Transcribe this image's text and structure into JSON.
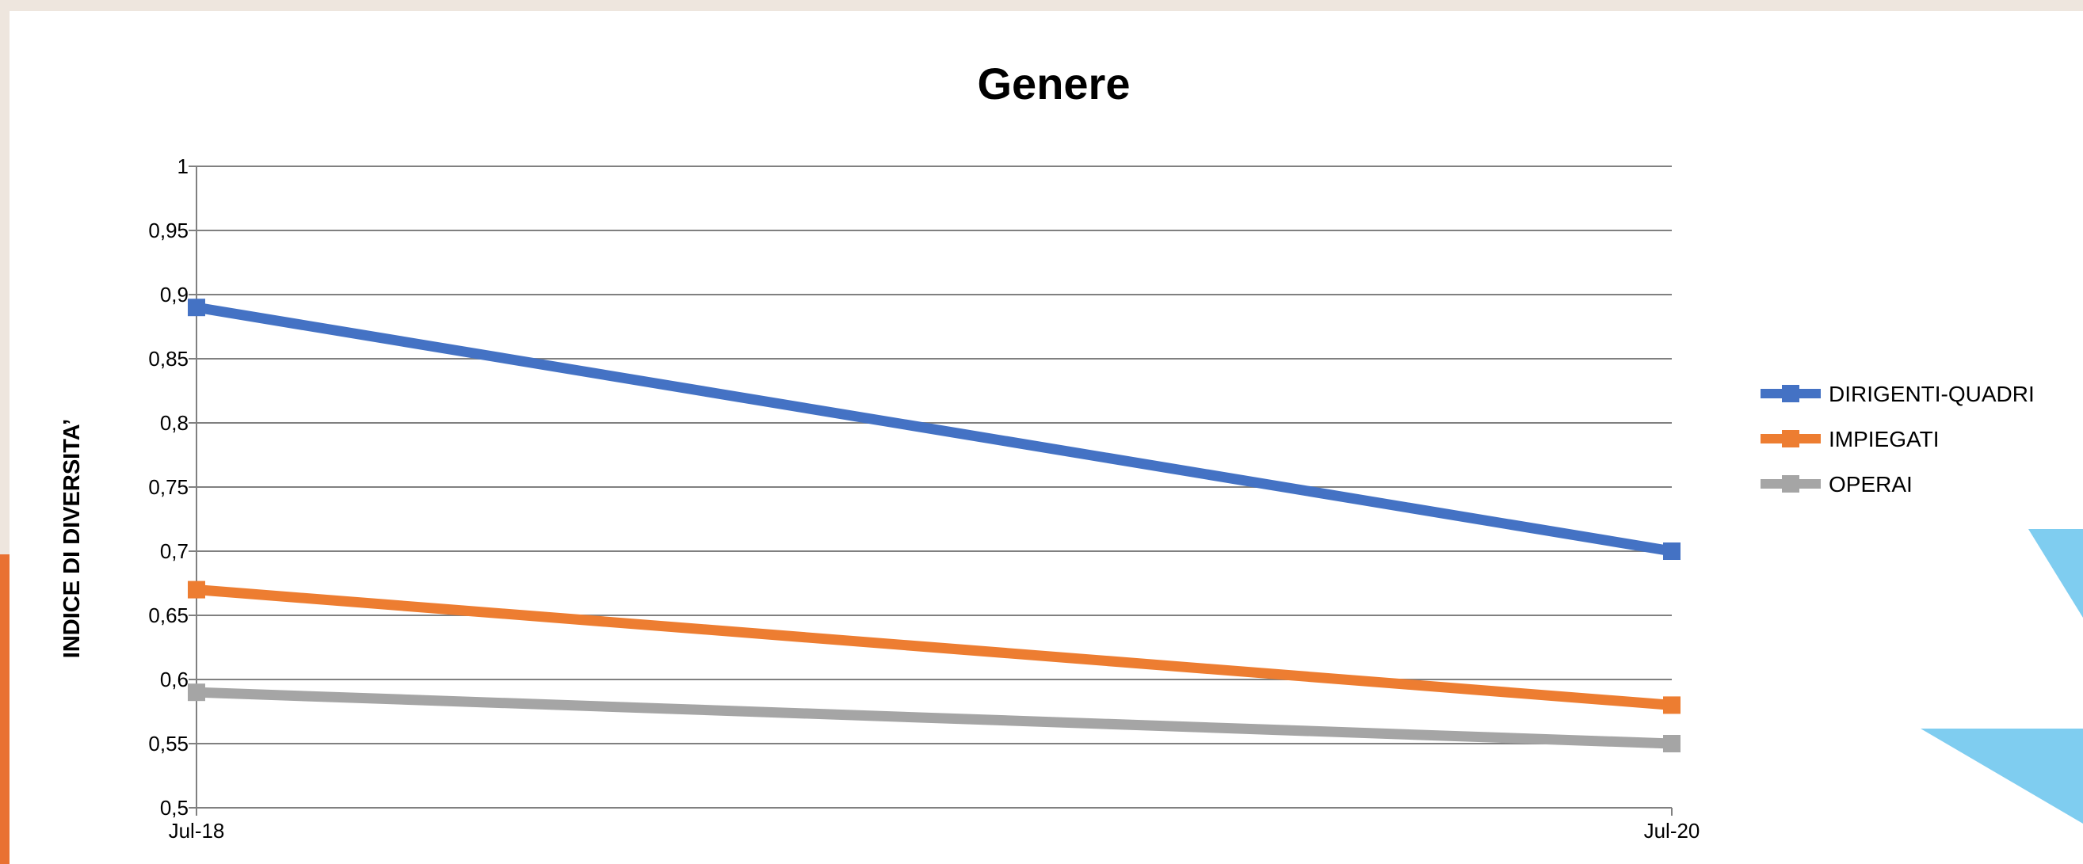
{
  "slide": {
    "colors": {
      "frame": "#eee6de",
      "accent_left": "#e97132",
      "accent_shape": "#7fcdf0",
      "plot_line": "#808080"
    }
  },
  "chart_data": {
    "type": "line",
    "title": "Genere",
    "xlabel": "",
    "ylabel": "INDICE DI DIVERSITA’",
    "categories": [
      "Jul-18",
      "Jul-20"
    ],
    "ylim": [
      0.5,
      1
    ],
    "yticks": [
      {
        "value": 1,
        "label": "1"
      },
      {
        "value": 0.95,
        "label": "0,95"
      },
      {
        "value": 0.9,
        "label": "0,9"
      },
      {
        "value": 0.85,
        "label": "0,85"
      },
      {
        "value": 0.8,
        "label": "0,8"
      },
      {
        "value": 0.75,
        "label": "0,75"
      },
      {
        "value": 0.7,
        "label": "0,7"
      },
      {
        "value": 0.65,
        "label": "0,65"
      },
      {
        "value": 0.6,
        "label": "0,6"
      },
      {
        "value": 0.55,
        "label": "0,55"
      },
      {
        "value": 0.5,
        "label": "0,5"
      }
    ],
    "grid": true,
    "legend_position": "right",
    "series": [
      {
        "name": "DIRIGENTI-QUADRI",
        "values": [
          0.89,
          0.7
        ],
        "color": "#4472c4"
      },
      {
        "name": "IMPIEGATI",
        "values": [
          0.67,
          0.58
        ],
        "color": "#ed7d31"
      },
      {
        "name": "OPERAI",
        "values": [
          0.59,
          0.55
        ],
        "color": "#a5a5a5"
      }
    ]
  }
}
